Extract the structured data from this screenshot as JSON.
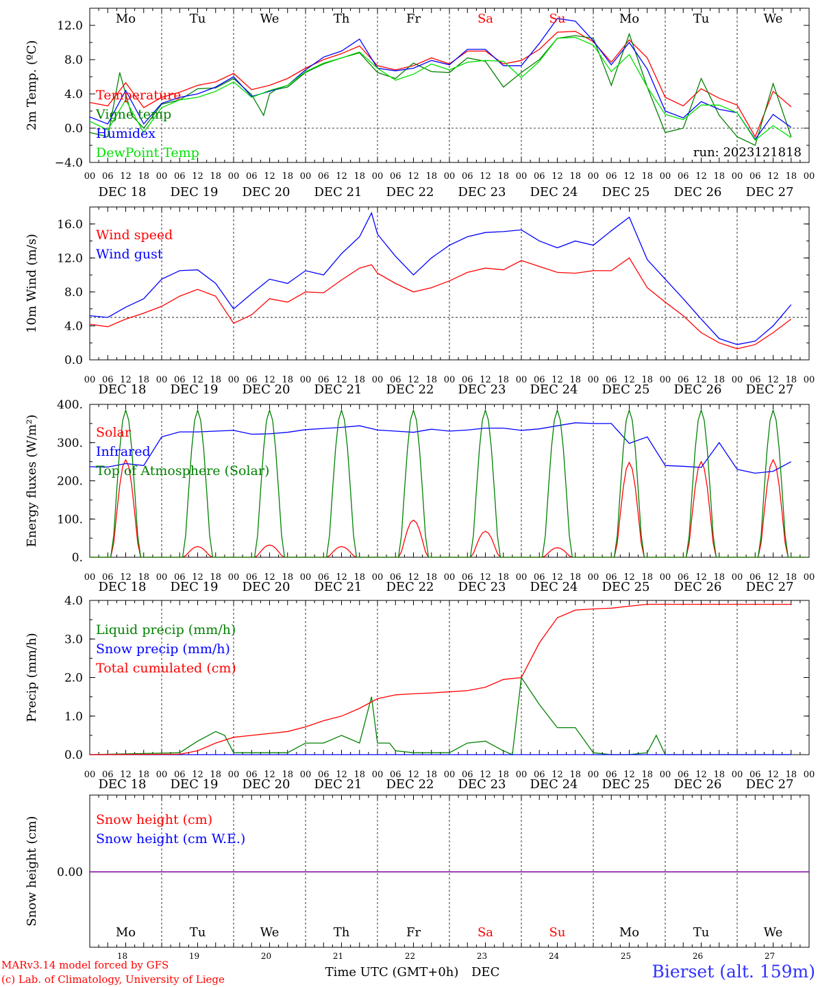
{
  "days": {
    "weekday_labels": [
      "Mo",
      "Tu",
      "We",
      "Th",
      "Fr",
      "Sa",
      "Su",
      "Mo",
      "Tu",
      "We"
    ],
    "weekend_index": [
      5,
      6
    ],
    "date_labels": [
      "DEC 18",
      "DEC 19",
      "DEC 20",
      "DEC 21",
      "DEC 22",
      "DEC 23",
      "DEC 24",
      "DEC 25",
      "DEC 26",
      "DEC 27"
    ],
    "day_numbers": [
      "18",
      "19",
      "20",
      "21",
      "22",
      "23",
      "24",
      "25",
      "26",
      "27"
    ],
    "hour_ticks": [
      "00",
      "06",
      "12",
      "18"
    ],
    "end_tick": "00"
  },
  "colors": {
    "red": "#ff0000",
    "green": "#008000",
    "blue": "#0000ff",
    "lightgreen": "#00e000",
    "purple": "#8000a0",
    "axis": "#000000",
    "footer_blue": "#3030ff"
  },
  "footer": {
    "model_line": "MARv3.14 model forced by GFS",
    "credit_line": "(c) Lab. of Climatology, University of Liege",
    "time_label": "Time UTC (GMT+0h)",
    "month_label": "DEC",
    "station": "Bierset (alt. 159m)"
  },
  "chart_data": [
    {
      "type": "line",
      "ylabel": "2m Temp. (oC)",
      "ylim": [
        -4,
        14
      ],
      "yticks": [
        -4.0,
        0.0,
        4.0,
        8.0,
        12.0
      ],
      "ytick_labels": [
        "−4.0",
        "0.0",
        "4.0",
        "8.0",
        "12.0"
      ],
      "reference_line": 0,
      "annotation": "run: 2023121818",
      "x_unit": "hours from DEC 18 00 UTC",
      "series": [
        {
          "name": "Temperature",
          "color": "red",
          "x": [
            0,
            6,
            12,
            18,
            24,
            30,
            36,
            42,
            48,
            54,
            60,
            66,
            72,
            78,
            84,
            90,
            96,
            102,
            108,
            114,
            120,
            126,
            132,
            138,
            144,
            150,
            156,
            162,
            168,
            174,
            180,
            186,
            192,
            198,
            204,
            210,
            216,
            222,
            228,
            234
          ],
          "y": [
            3.0,
            2.6,
            5.3,
            2.4,
            3.6,
            4.2,
            5.0,
            5.4,
            6.4,
            4.5,
            5.0,
            5.8,
            7.0,
            8.0,
            8.7,
            9.6,
            7.3,
            6.8,
            7.3,
            8.2,
            7.5,
            9.0,
            9.0,
            7.5,
            7.9,
            9.2,
            11.2,
            11.3,
            10.1,
            7.7,
            10.3,
            8.2,
            3.6,
            2.6,
            4.6,
            3.5,
            2.7,
            -1.0,
            4.3,
            2.5
          ]
        },
        {
          "name": "Vigne temp",
          "color": "green",
          "x": [
            0,
            6,
            10,
            12,
            14,
            18,
            24,
            30,
            36,
            42,
            48,
            54,
            58,
            60,
            62,
            66,
            72,
            78,
            84,
            90,
            96,
            102,
            108,
            114,
            120,
            126,
            132,
            138,
            144,
            150,
            156,
            162,
            168,
            174,
            180,
            186,
            192,
            198,
            204,
            210,
            216,
            222,
            228,
            234
          ],
          "y": [
            -0.5,
            -1.0,
            6.5,
            4.0,
            1.5,
            0.0,
            2.8,
            3.3,
            4.6,
            4.7,
            5.8,
            3.9,
            1.5,
            4.0,
            4.5,
            4.8,
            6.5,
            7.5,
            8.2,
            8.8,
            6.5,
            5.8,
            7.6,
            6.6,
            6.5,
            8.2,
            7.8,
            4.8,
            6.5,
            8.0,
            10.5,
            10.8,
            10.5,
            5.0,
            11.0,
            4.8,
            -0.5,
            0.0,
            5.8,
            1.5,
            -1.0,
            -2.0,
            5.2,
            -1.0
          ]
        },
        {
          "name": "Humidex",
          "color": "blue",
          "x": [
            0,
            6,
            12,
            18,
            24,
            30,
            36,
            42,
            48,
            54,
            60,
            66,
            72,
            78,
            84,
            90,
            96,
            102,
            108,
            114,
            120,
            126,
            132,
            138,
            144,
            150,
            156,
            162,
            168,
            174,
            180,
            186,
            192,
            198,
            204,
            210,
            216,
            222,
            228,
            234
          ],
          "y": [
            1.3,
            0.5,
            4.4,
            0.5,
            2.9,
            3.6,
            4.0,
            4.8,
            6.0,
            3.7,
            4.3,
            5.0,
            6.8,
            8.3,
            9.0,
            10.4,
            7.0,
            6.7,
            7.0,
            7.9,
            7.4,
            9.2,
            9.2,
            7.3,
            7.3,
            9.9,
            12.8,
            12.5,
            10.2,
            7.4,
            10.0,
            6.9,
            2.0,
            1.2,
            3.1,
            2.2,
            1.8,
            -1.3,
            1.6,
            0.1
          ]
        },
        {
          "name": "DewPoint Temp",
          "color": "lightgreen",
          "x": [
            0,
            6,
            12,
            18,
            24,
            30,
            36,
            42,
            48,
            54,
            60,
            66,
            72,
            78,
            84,
            90,
            96,
            102,
            108,
            114,
            120,
            126,
            132,
            138,
            144,
            150,
            156,
            162,
            168,
            174,
            180,
            186,
            192,
            198,
            204,
            210,
            216,
            222,
            228,
            234
          ],
          "y": [
            0.8,
            -0.2,
            3.3,
            -0.5,
            2.4,
            3.3,
            3.6,
            4.3,
            5.4,
            3.6,
            4.4,
            5.0,
            6.6,
            7.6,
            8.2,
            8.9,
            7.0,
            5.6,
            6.3,
            7.5,
            6.8,
            7.7,
            7.9,
            7.8,
            5.9,
            7.8,
            10.5,
            10.6,
            9.7,
            6.6,
            8.6,
            4.8,
            1.6,
            1.0,
            2.7,
            2.7,
            1.8,
            -1.4,
            0.3,
            -1.1
          ]
        }
      ]
    },
    {
      "type": "line",
      "ylabel": "10m Wind (m/s)",
      "ylim": [
        0,
        18
      ],
      "yticks": [
        0.0,
        4.0,
        8.0,
        12.0,
        16.0
      ],
      "ytick_labels": [
        "0.0",
        "4.0",
        "8.0",
        "12.0",
        "16.0"
      ],
      "reference_line": 5,
      "x_unit": "hours from DEC 18 00 UTC",
      "series": [
        {
          "name": "Wind speed",
          "color": "red",
          "x": [
            0,
            6,
            12,
            18,
            24,
            30,
            36,
            42,
            48,
            54,
            60,
            66,
            72,
            78,
            84,
            90,
            94,
            96,
            102,
            108,
            114,
            120,
            126,
            132,
            138,
            144,
            150,
            156,
            162,
            168,
            174,
            180,
            186,
            192,
            198,
            204,
            210,
            216,
            222,
            228,
            234
          ],
          "y": [
            4.2,
            3.9,
            4.8,
            5.5,
            6.3,
            7.5,
            8.3,
            7.5,
            4.3,
            5.3,
            7.2,
            6.8,
            8.0,
            7.9,
            9.4,
            10.8,
            11.2,
            10.2,
            9.0,
            8.0,
            8.5,
            9.3,
            10.3,
            10.8,
            10.6,
            11.7,
            11.0,
            10.3,
            10.2,
            10.5,
            10.5,
            12.0,
            8.5,
            6.8,
            5.2,
            3.2,
            2.0,
            1.3,
            1.8,
            3.2,
            4.8
          ]
        },
        {
          "name": "Wind gust",
          "color": "blue",
          "x": [
            0,
            6,
            12,
            18,
            24,
            30,
            36,
            42,
            48,
            54,
            60,
            66,
            72,
            78,
            84,
            90,
            94,
            96,
            102,
            108,
            114,
            120,
            126,
            132,
            138,
            144,
            150,
            156,
            162,
            168,
            174,
            180,
            186,
            192,
            198,
            204,
            210,
            216,
            222,
            228,
            234
          ],
          "y": [
            5.2,
            5.0,
            6.2,
            7.2,
            9.5,
            10.5,
            10.6,
            9.0,
            6.0,
            7.8,
            9.5,
            9.0,
            10.5,
            10.0,
            12.5,
            14.5,
            17.3,
            14.8,
            12.2,
            10.0,
            12.0,
            13.5,
            14.5,
            15.0,
            15.1,
            15.3,
            14.0,
            13.2,
            14.0,
            13.5,
            15.2,
            16.8,
            11.8,
            9.5,
            7.2,
            4.8,
            2.5,
            1.8,
            2.2,
            4.0,
            6.5
          ]
        }
      ]
    },
    {
      "type": "line",
      "ylabel": "Energy fluxes (W/m2)",
      "ylim": [
        0,
        400
      ],
      "yticks": [
        0,
        100,
        200,
        300,
        400
      ],
      "ytick_labels": [
        "0.",
        "100.",
        "200.",
        "300.",
        "400."
      ],
      "x_unit": "hours from DEC 18 00 UTC",
      "series": [
        {
          "name": "Solar",
          "color": "red",
          "peak_hour": 12,
          "daily_peak": [
            255,
            28,
            32,
            28,
            97,
            68,
            25,
            248,
            250,
            255
          ]
        },
        {
          "name": "Infrared",
          "color": "blue",
          "x": [
            0,
            6,
            12,
            18,
            24,
            30,
            36,
            42,
            48,
            54,
            60,
            66,
            72,
            78,
            84,
            90,
            96,
            102,
            108,
            114,
            120,
            126,
            132,
            138,
            144,
            150,
            156,
            162,
            168,
            174,
            180,
            186,
            192,
            198,
            204,
            210,
            216,
            222,
            228,
            234
          ],
          "y": [
            237,
            236,
            245,
            240,
            315,
            328,
            328,
            330,
            332,
            322,
            323,
            327,
            334,
            337,
            340,
            344,
            333,
            330,
            327,
            335,
            330,
            333,
            338,
            338,
            332,
            336,
            344,
            352,
            350,
            350,
            298,
            315,
            240,
            238,
            235,
            300,
            230,
            220,
            225,
            250
          ]
        },
        {
          "name": "Top of Atmosphere (Solar)",
          "color": "green",
          "peak_hour": 12,
          "daily_peak": [
            385,
            385,
            385,
            385,
            385,
            385,
            385,
            385,
            385,
            385
          ]
        }
      ]
    },
    {
      "type": "line",
      "ylabel": "Precip (mm/h)",
      "ylim": [
        0,
        4
      ],
      "yticks": [
        0.0,
        1.0,
        2.0,
        3.0,
        4.0
      ],
      "ytick_labels": [
        "0.0",
        "1.0",
        "2.0",
        "3.0",
        "4.0"
      ],
      "x_unit": "hours from DEC 18 00 UTC",
      "series": [
        {
          "name": "Liquid precip (mm/h)",
          "color": "green",
          "x": [
            0,
            30,
            36,
            42,
            45,
            48,
            54,
            60,
            66,
            72,
            78,
            84,
            90,
            94,
            96,
            100,
            102,
            108,
            114,
            120,
            126,
            132,
            138,
            141,
            144,
            150,
            156,
            162,
            168,
            174,
            180,
            186,
            189,
            192,
            234
          ],
          "y": [
            0,
            0.05,
            0.35,
            0.6,
            0.5,
            0.05,
            0.05,
            0.05,
            0.05,
            0.3,
            0.3,
            0.5,
            0.3,
            1.5,
            0.3,
            0.3,
            0.1,
            0.05,
            0.05,
            0.05,
            0.3,
            0.35,
            0.1,
            0,
            2.0,
            1.3,
            0.7,
            0.7,
            0.05,
            0,
            0,
            0.05,
            0.5,
            0,
            0
          ]
        },
        {
          "name": "Snow precip (mm/h)",
          "color": "blue",
          "x": [
            0,
            234
          ],
          "y": [
            0,
            0
          ]
        },
        {
          "name": "Total cumulated (cm)",
          "color": "red",
          "x": [
            0,
            30,
            36,
            42,
            48,
            54,
            60,
            66,
            72,
            78,
            84,
            90,
            96,
            102,
            108,
            114,
            120,
            126,
            132,
            138,
            144,
            150,
            156,
            162,
            168,
            174,
            180,
            186,
            192,
            198,
            204,
            210,
            216,
            222,
            228,
            234
          ],
          "y": [
            0,
            0.01,
            0.1,
            0.3,
            0.45,
            0.5,
            0.55,
            0.6,
            0.72,
            0.88,
            1.0,
            1.2,
            1.45,
            1.55,
            1.58,
            1.6,
            1.63,
            1.66,
            1.75,
            1.95,
            2.0,
            2.9,
            3.55,
            3.75,
            3.78,
            3.8,
            3.85,
            3.9,
            3.9,
            3.9,
            3.9,
            3.9,
            3.9,
            3.9,
            3.9,
            3.9
          ]
        }
      ]
    },
    {
      "type": "line",
      "ylabel": "Snow height (cm)",
      "ytick_labels": [
        "0.00"
      ],
      "x_unit": "hours from DEC 18 00 UTC",
      "series": [
        {
          "name": "Snow height (cm)",
          "color": "red",
          "x": [
            0,
            234
          ],
          "y": [
            0,
            0
          ]
        },
        {
          "name": "Snow height (cm W.E.)",
          "color": "blue",
          "x": [
            0,
            234
          ],
          "y": [
            0,
            0
          ]
        }
      ]
    }
  ]
}
